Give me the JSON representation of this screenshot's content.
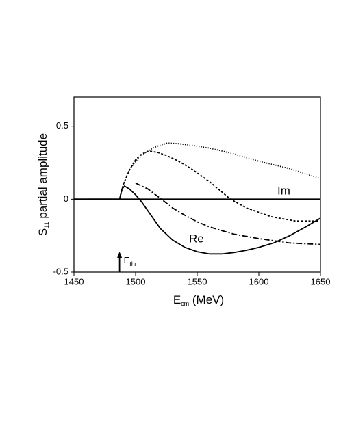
{
  "chart_data": {
    "type": "line",
    "xlabel": [
      "E",
      "cm",
      " (MeV)"
    ],
    "ylabel": [
      "S",
      "11",
      " partial amplitude"
    ],
    "xlim": [
      1450,
      1650
    ],
    "xticks": [
      1450,
      1500,
      1550,
      1600,
      1650
    ],
    "ylim": [
      -0.5,
      0.7
    ],
    "yticks": [
      -0.5,
      0,
      0.5
    ],
    "annotations": [
      {
        "text": "Im"
      },
      {
        "text": "Re"
      }
    ],
    "threshold": {
      "text": [
        "E",
        "thr"
      ],
      "x": 1487
    },
    "series": [
      {
        "color": "#000",
        "dash": "solid",
        "x": [
          1450,
          1650
        ],
        "values": [
          0,
          0
        ]
      },
      {
        "color": "#000",
        "dash": "solid",
        "x": [
          1450,
          1487,
          1489,
          1491,
          1495,
          1500,
          1505,
          1510,
          1520,
          1530,
          1540,
          1550,
          1560,
          1570,
          1580,
          1590,
          1600,
          1612,
          1625,
          1638,
          1650
        ],
        "values": [
          0,
          0,
          0.07,
          0.09,
          0.07,
          0.03,
          -0.02,
          -0.08,
          -0.2,
          -0.28,
          -0.33,
          -0.36,
          -0.375,
          -0.375,
          -0.365,
          -0.35,
          -0.33,
          -0.3,
          -0.25,
          -0.19,
          -0.13
        ]
      },
      {
        "color": "#000",
        "dash": "1.2 2.2",
        "x": [
          1450,
          1487,
          1490,
          1495,
          1500,
          1505,
          1510,
          1515,
          1520,
          1526,
          1535,
          1545,
          1560,
          1580,
          1600,
          1625,
          1650
        ],
        "values": [
          0,
          0,
          0.1,
          0.2,
          0.26,
          0.3,
          0.33,
          0.355,
          0.37,
          0.385,
          0.38,
          0.37,
          0.35,
          0.31,
          0.26,
          0.21,
          0.14
        ]
      },
      {
        "color": "#000",
        "dash": "3 2.5",
        "x": [
          1487,
          1490,
          1495,
          1500,
          1505,
          1511,
          1518,
          1525,
          1535,
          1545,
          1560,
          1577,
          1590,
          1610,
          1630,
          1650
        ],
        "values": [
          0,
          0.1,
          0.2,
          0.27,
          0.31,
          0.33,
          0.32,
          0.3,
          0.26,
          0.21,
          0.12,
          0.0,
          -0.06,
          -0.12,
          -0.15,
          -0.15
        ]
      },
      {
        "color": "#000",
        "dash": "8 3 2 3",
        "x": [
          1500,
          1510,
          1521,
          1530,
          1540,
          1550,
          1560,
          1570,
          1580,
          1600,
          1625,
          1650
        ],
        "values": [
          0.11,
          0.07,
          0.0,
          -0.06,
          -0.11,
          -0.155,
          -0.19,
          -0.215,
          -0.24,
          -0.27,
          -0.3,
          -0.31
        ]
      }
    ]
  }
}
